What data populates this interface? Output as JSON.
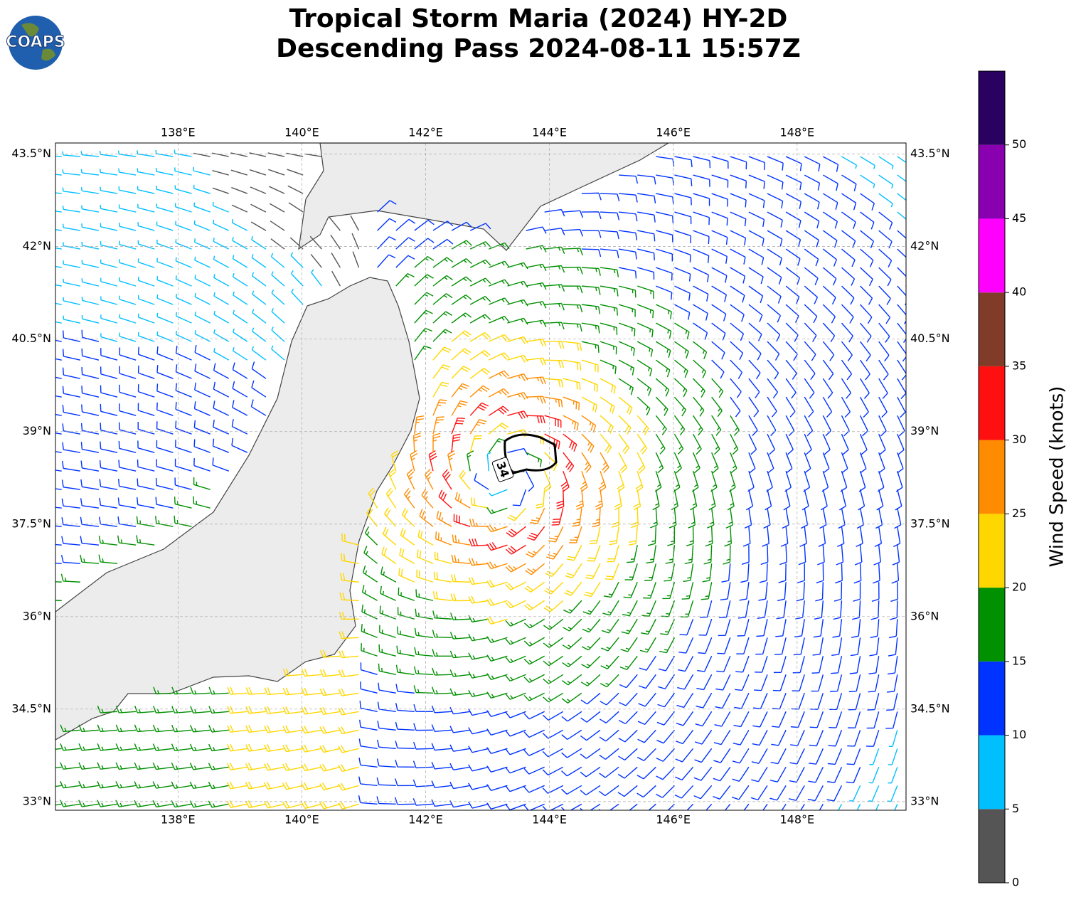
{
  "title": [
    "Tropical Storm Maria (2024) HY-2D",
    "Descending Pass 2024-08-11 15:57Z"
  ],
  "logo": "COAPS",
  "map": {
    "xlim": [
      136.02,
      149.76
    ],
    "ylim": [
      32.86,
      43.68
    ],
    "xticks": [
      {
        "value": 138,
        "label": "138°E"
      },
      {
        "value": 140,
        "label": "140°E"
      },
      {
        "value": 142,
        "label": "142°E"
      },
      {
        "value": 144,
        "label": "144°E"
      },
      {
        "value": 146,
        "label": "146°E"
      },
      {
        "value": 148,
        "label": "148°E"
      }
    ],
    "yticks": [
      {
        "value": 33,
        "label": "33°N"
      },
      {
        "value": 34.5,
        "label": "34.5°N"
      },
      {
        "value": 36,
        "label": "36°N"
      },
      {
        "value": 37.5,
        "label": "37.5°N"
      },
      {
        "value": 39,
        "label": "39°N"
      },
      {
        "value": 40.5,
        "label": "40.5°N"
      },
      {
        "value": 42,
        "label": "42°N"
      },
      {
        "value": 43.5,
        "label": "43.5°N"
      }
    ],
    "contour_label": "34"
  },
  "colorbar": {
    "label": "Wind Speed (knots)",
    "range": [
      0,
      55
    ],
    "ticks": [
      0,
      5,
      10,
      15,
      20,
      25,
      30,
      35,
      40,
      45,
      50
    ],
    "colors": [
      "#555555",
      "#00bfff",
      "#0033ff",
      "#009000",
      "#ffd700",
      "#ff8c00",
      "#ff1010",
      "#803c28",
      "#ff00ff",
      "#8800b0",
      "#2a0060"
    ]
  }
}
